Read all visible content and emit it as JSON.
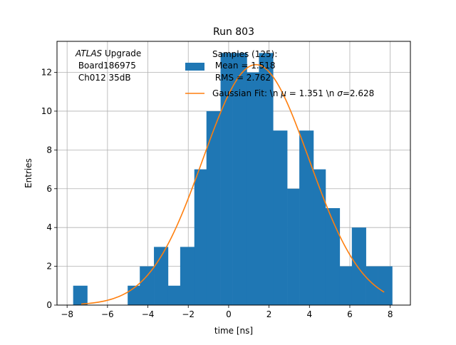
{
  "chart_data": {
    "type": "bar",
    "title": "Run 803",
    "xlabel": "time [ns]",
    "ylabel": "Entries",
    "xlim": [
      -8.5,
      9.0
    ],
    "ylim": [
      0,
      13.6
    ],
    "grid": true,
    "xticks": [
      -8,
      -6,
      -4,
      -2,
      0,
      2,
      4,
      6,
      8
    ],
    "xtick_labels": [
      "−8",
      "−6",
      "−4",
      "−2",
      "0",
      "2",
      "4",
      "6",
      "8"
    ],
    "yticks": [
      0,
      2,
      4,
      6,
      8,
      10,
      12
    ],
    "bin_edges": [
      -7.7,
      -7.0,
      -6.3,
      -5.7,
      -5.0,
      -4.4,
      -3.7,
      -3.0,
      -2.4,
      -1.7,
      -1.1,
      -0.4,
      0.2,
      0.9,
      1.5,
      2.2,
      2.9,
      3.5,
      4.2,
      4.8,
      5.5,
      6.1,
      6.8,
      7.4,
      8.1
    ],
    "hist_values": [
      1,
      0,
      0,
      0,
      1,
      2,
      3,
      1,
      3,
      7,
      10,
      13,
      13,
      12,
      13,
      9,
      6,
      9,
      7,
      5,
      2,
      4,
      2,
      2
    ],
    "series": [
      {
        "name": "Samples (125):",
        "kind": "histogram",
        "color": "#1f77b4",
        "stats": [
          "Mean = 1.518",
          "RMS = 2.762"
        ]
      },
      {
        "name": "Gaussian Fit: \\n $\\mu$ = 1.351 \\n $\\sigma$=2.628",
        "kind": "line",
        "color": "#ff7f0e",
        "fit": {
          "mu": 1.351,
          "sigma": 2.628,
          "amplitude": 12.4,
          "x_range": [
            -7.3,
            7.7
          ]
        }
      }
    ],
    "legend_position": "top-right",
    "legend": {
      "hist_label": "Samples (125):",
      "hist_mean": " Mean = 1.518",
      "hist_rms": " RMS = 2.762",
      "fit_label_prefix": "Gaussian Fit: \\n ",
      "fit_mu_symbol": "μ",
      "fit_label_middle": " = 1.351 \\n ",
      "fit_sigma_symbol": "σ",
      "fit_label_suffix": "=2.628"
    },
    "annotation": {
      "line1_italic": "ATLAS",
      "line1_rest": " Upgrade",
      "line2": " Board186975",
      "line3": " Ch012 35dB"
    }
  }
}
